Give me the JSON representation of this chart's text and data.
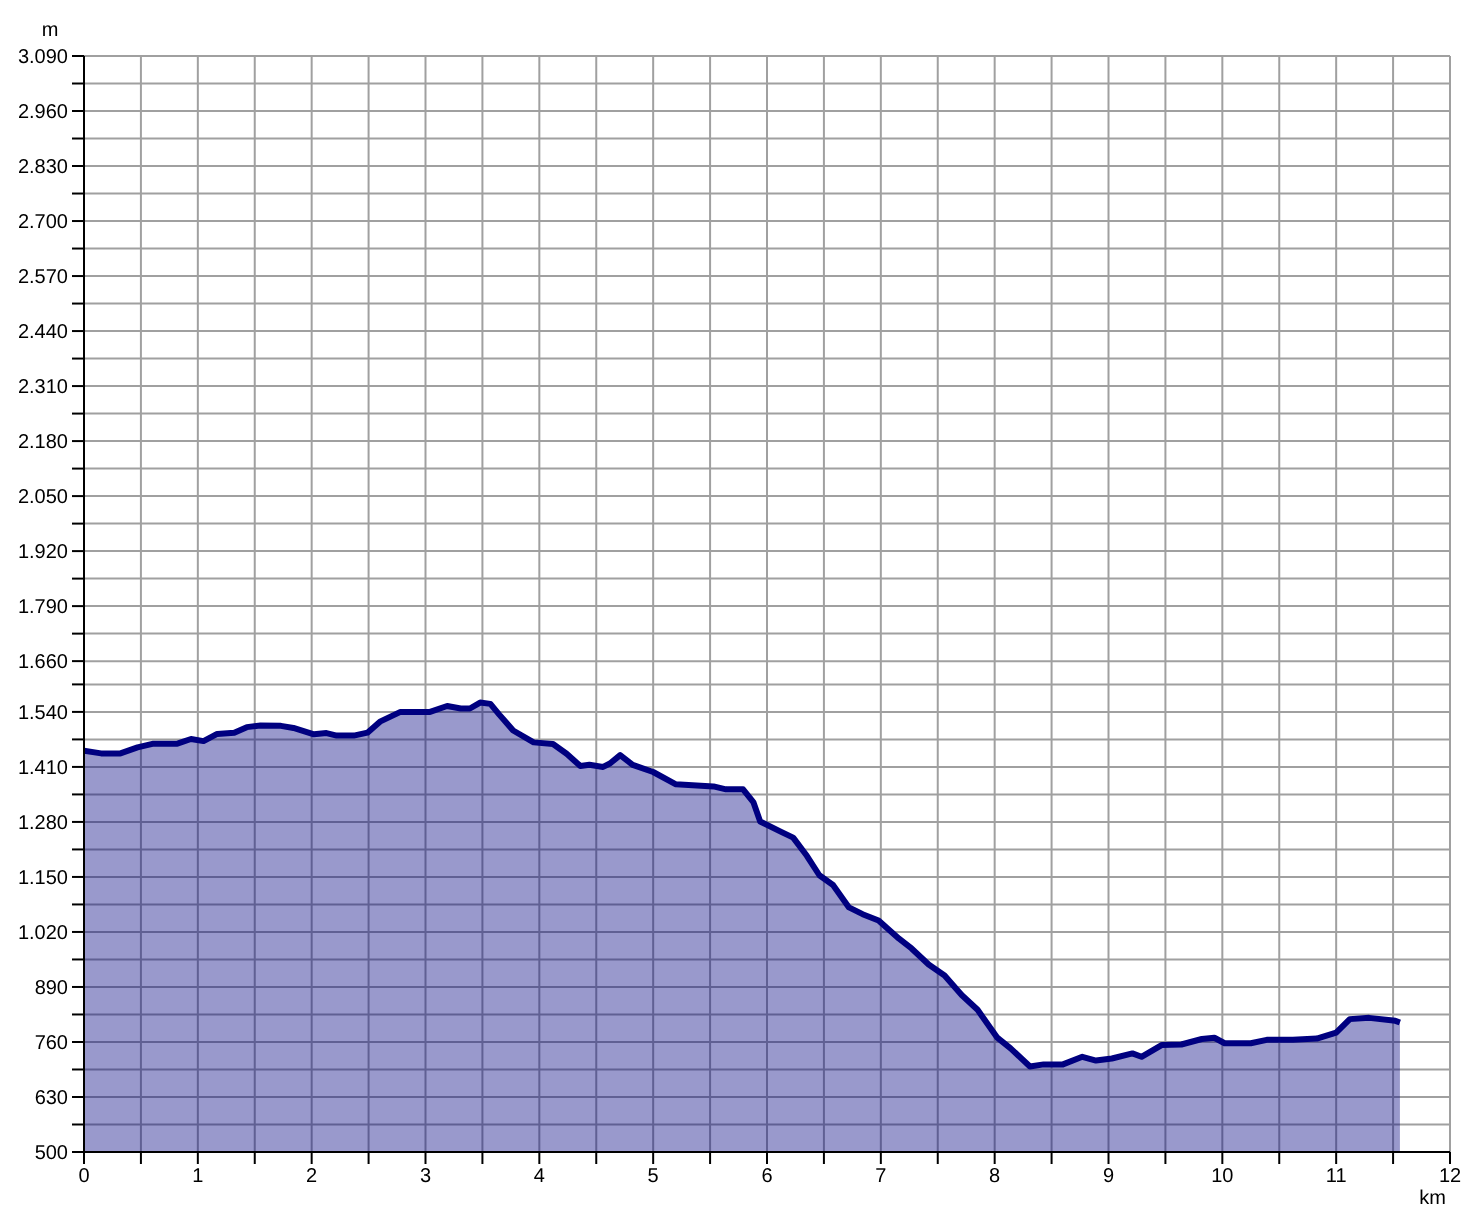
{
  "chart_data": {
    "type": "area",
    "xlabel": "km",
    "ylabel": "m",
    "x": [
      0,
      0.15,
      0.32,
      0.47,
      0.61,
      0.82,
      0.94,
      1.05,
      1.17,
      1.32,
      1.43,
      1.55,
      1.73,
      1.84,
      2.02,
      2.13,
      2.22,
      2.37,
      2.49,
      2.6,
      2.78,
      3.04,
      3.19,
      3.31,
      3.39,
      3.48,
      3.57,
      3.65,
      3.77,
      3.95,
      4.12,
      4.24,
      4.36,
      4.44,
      4.56,
      4.62,
      4.71,
      4.82,
      5.0,
      5.2,
      5.53,
      5.64,
      5.79,
      5.88,
      5.94,
      6.12,
      6.23,
      6.35,
      6.46,
      6.58,
      6.72,
      6.84,
      6.98,
      7.16,
      7.27,
      7.42,
      7.56,
      7.71,
      7.85,
      8.02,
      8.14,
      8.31,
      8.43,
      8.6,
      8.77,
      8.89,
      9.03,
      9.21,
      9.29,
      9.47,
      9.64,
      9.82,
      9.93,
      10.02,
      10.25,
      10.39,
      10.62,
      10.83,
      11.0,
      11.12,
      11.29,
      11.52,
      11.56
    ],
    "series": [
      {
        "color": "#000080",
        "values": [
          1448,
          1442,
          1442,
          1456,
          1465,
          1465,
          1476,
          1471,
          1488,
          1491,
          1504,
          1508,
          1507,
          1502,
          1487,
          1490,
          1484,
          1484,
          1491,
          1517,
          1540,
          1540,
          1554,
          1548,
          1548,
          1562,
          1559,
          1533,
          1496,
          1468,
          1464,
          1441,
          1412,
          1415,
          1410,
          1418,
          1438,
          1415,
          1398,
          1369,
          1364,
          1357,
          1357,
          1327,
          1281,
          1257,
          1243,
          1200,
          1154,
          1131,
          1078,
          1062,
          1047,
          1004,
          981,
          943,
          917,
          871,
          836,
          771,
          745,
          702,
          707,
          707,
          725,
          716,
          721,
          733,
          725,
          753,
          754,
          767,
          770,
          757,
          757,
          765,
          765,
          768,
          782,
          814,
          817,
          810,
          806
        ]
      }
    ],
    "xlim": [
      0,
      12
    ],
    "xticks": [
      0,
      {
        "value": 0.5,
        "label": null
      },
      1,
      {
        "value": 1.5,
        "label": null
      },
      2,
      {
        "value": 2.5,
        "label": null
      },
      3,
      {
        "value": 3.5,
        "label": null
      },
      4,
      {
        "value": 4.5,
        "label": null
      },
      5,
      {
        "value": 5.5,
        "label": null
      },
      6,
      {
        "value": 6.5,
        "label": null
      },
      7,
      {
        "value": 7.5,
        "label": null
      },
      8,
      {
        "value": 8.5,
        "label": null
      },
      9,
      {
        "value": 9.5,
        "label": null
      },
      10,
      {
        "value": 10.5,
        "label": null
      },
      11,
      {
        "value": 11.5,
        "label": null
      },
      12
    ],
    "ylim": [
      500,
      3090
    ],
    "yticks": [
      500,
      {
        "value": 565,
        "label": null
      },
      630,
      {
        "value": 695,
        "label": null
      },
      760,
      {
        "value": 825,
        "label": null
      },
      890,
      {
        "value": 955,
        "label": null
      },
      {
        "value": 1020,
        "label": "1.020"
      },
      {
        "value": 1085,
        "label": null
      },
      {
        "value": 1150,
        "label": "1.150"
      },
      {
        "value": 1215,
        "label": null
      },
      {
        "value": 1280,
        "label": "1.280"
      },
      {
        "value": 1345,
        "label": null
      },
      {
        "value": 1410,
        "label": "1.410"
      },
      {
        "value": 1475,
        "label": null
      },
      {
        "value": 1540,
        "label": "1.540"
      },
      {
        "value": 1605,
        "label": null
      },
      {
        "value": 1660,
        "label": "1.660"
      },
      {
        "value": 1725,
        "label": null
      },
      {
        "value": 1790,
        "label": "1.790"
      },
      {
        "value": 1855,
        "label": null
      },
      {
        "value": 1920,
        "label": "1.920"
      },
      {
        "value": 1985,
        "label": null
      },
      {
        "value": 2050,
        "label": "2.050"
      },
      {
        "value": 2115,
        "label": null
      },
      {
        "value": 2180,
        "label": "2.180"
      },
      {
        "value": 2245,
        "label": null
      },
      {
        "value": 2310,
        "label": "2.310"
      },
      {
        "value": 2375,
        "label": null
      },
      {
        "value": 2440,
        "label": "2.440"
      },
      {
        "value": 2505,
        "label": null
      },
      {
        "value": 2570,
        "label": "2.570"
      },
      {
        "value": 2635,
        "label": null
      },
      {
        "value": 2700,
        "label": "2.700"
      },
      {
        "value": 2765,
        "label": null
      },
      {
        "value": 2830,
        "label": "2.830"
      },
      {
        "value": 2895,
        "label": null
      },
      {
        "value": 2960,
        "label": "2.960"
      },
      {
        "value": 3025,
        "label": null
      },
      {
        "value": 3090,
        "label": "3.090"
      }
    ],
    "grid": true
  }
}
